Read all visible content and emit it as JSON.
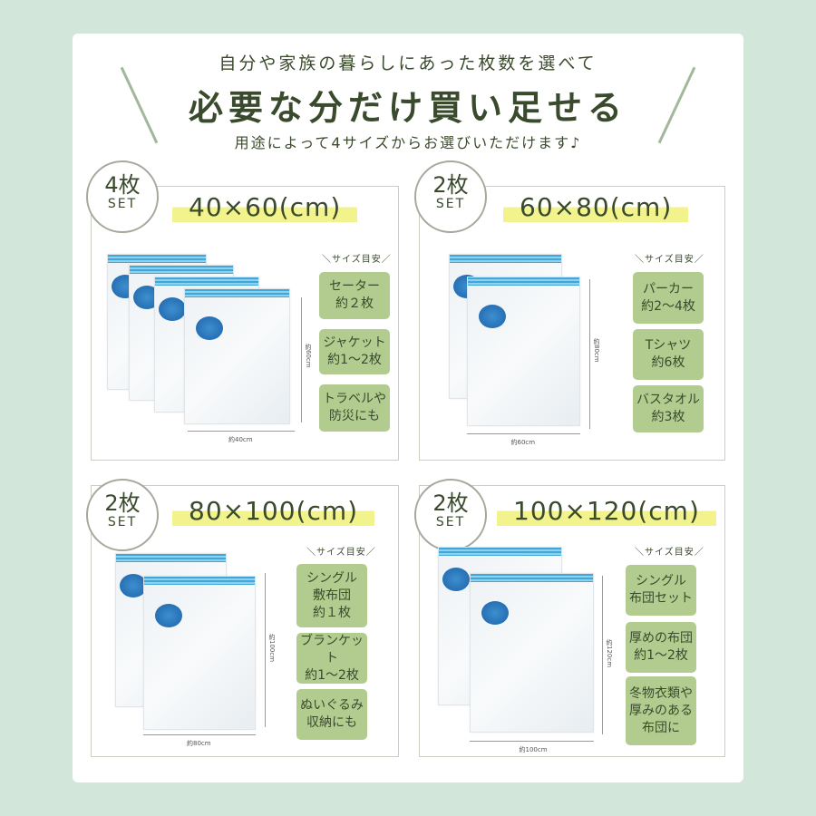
{
  "header": {
    "subtitle_top": "自分や家族の暮らしにあった枚数を選べて",
    "title": "必要な分だけ買い足せる",
    "subtitle_bottom": "用途によって4サイズからお選びいただけます♪"
  },
  "guide_label": "＼サイズ目安／",
  "colors": {
    "background": "#d2e6da",
    "text": "#3a4a2c",
    "tag": "#b2cc90",
    "highlight": "#f2f38c",
    "zipper": "#3fa8d8",
    "valve": "#1d62a8"
  },
  "panels": [
    {
      "count": "4枚",
      "set": "SET",
      "size": "40×60(cm)",
      "height_label": "約60cm",
      "width_label": "約40cm",
      "tags": [
        "セーター\n約２枚",
        "ジャケット\n約1〜2枚",
        "トラベルや\n防災にも"
      ]
    },
    {
      "count": "2枚",
      "set": "SET",
      "size": "60×80(cm)",
      "height_label": "約80cm",
      "width_label": "約60cm",
      "tags": [
        "パーカー\n約2〜4枚",
        "Tシャツ\n約6枚",
        "バスタオル\n約3枚"
      ]
    },
    {
      "count": "2枚",
      "set": "SET",
      "size": "80×100(cm)",
      "height_label": "約100cm",
      "width_label": "約80cm",
      "tags": [
        "シングル\n敷布団\n約１枚",
        "ブランケット\n約1〜2枚",
        "ぬいぐるみ\n収納にも"
      ]
    },
    {
      "count": "2枚",
      "set": "SET",
      "size": "100×120(cm)",
      "height_label": "約120cm",
      "width_label": "約100cm",
      "tags": [
        "シングル\n布団セット",
        "厚めの布団\n約1〜2枚",
        "冬物衣類や\n厚みのある\n布団に"
      ]
    }
  ]
}
